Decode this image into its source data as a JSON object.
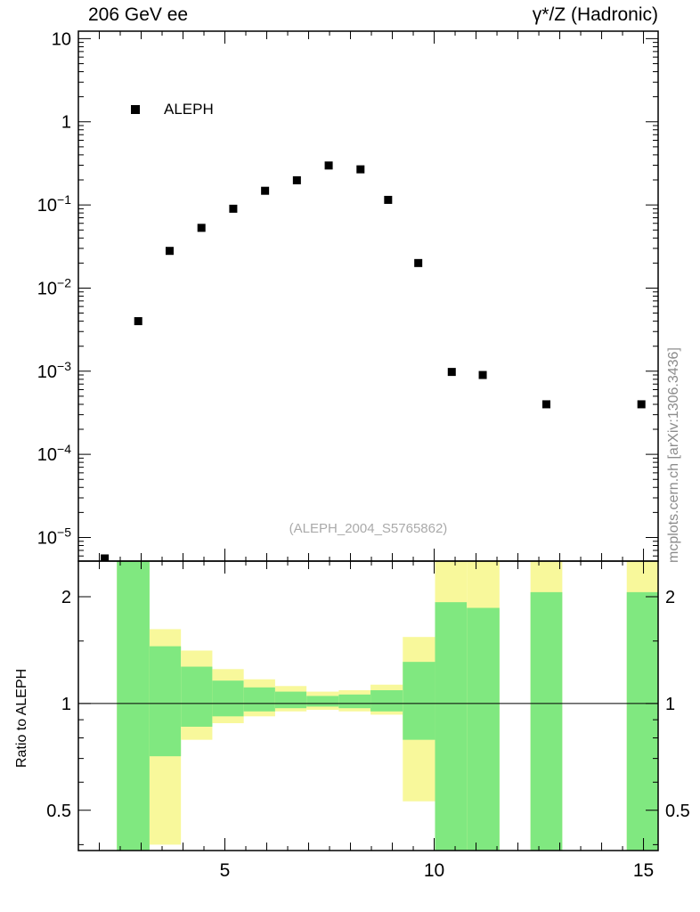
{
  "side_note": "mcplots.cern.ch [arXiv:1306.3436]",
  "chart_data": {
    "type": "scatter",
    "title": "206 GeV ee",
    "right_title": "γ*/Z (Hadronic)",
    "analysis": "(ALEPH_2004_S5765862)",
    "x_axis": {
      "range": [
        1.5,
        15.35
      ],
      "major_ticks": [
        5,
        10,
        15
      ],
      "minor_step": 0.5,
      "label": ""
    },
    "y_axis": {
      "scale": "log",
      "range": [
        5.2e-06,
        12.3
      ],
      "decade_exponents": [
        1,
        0,
        -1,
        -2,
        -3,
        -4,
        -5
      ]
    },
    "series": [
      {
        "name": "ALEPH",
        "marker": "black-filled-square",
        "points": [
          [
            2.13,
            5.6e-06
          ],
          [
            2.93,
            0.004
          ],
          [
            3.68,
            0.028
          ],
          [
            4.44,
            0.053
          ],
          [
            5.2,
            0.09
          ],
          [
            5.96,
            0.148
          ],
          [
            6.72,
            0.198
          ],
          [
            7.48,
            0.298
          ],
          [
            8.24,
            0.268
          ],
          [
            8.9,
            0.115
          ],
          [
            9.62,
            0.02
          ],
          [
            10.42,
            0.00098
          ],
          [
            11.16,
            0.0009
          ],
          [
            12.68,
            0.0004
          ],
          [
            14.95,
            0.0004
          ]
        ]
      }
    ],
    "ratio_panel": {
      "ylabel": "Ratio to ALEPH",
      "scale": "log",
      "range": [
        0.385,
        2.52
      ],
      "major_ticks": [
        0.5,
        1,
        2
      ],
      "minor_ticks": [
        0.4,
        0.6,
        0.7,
        0.8,
        0.9,
        1.5
      ],
      "reference_line": 1.0,
      "band_colors": {
        "outer": "#f8f89b",
        "inner": "#80e880"
      },
      "bands": [
        {
          "x": [
            2.42,
            3.2
          ],
          "outer": [
            0.385,
            2.52
          ],
          "inner": [
            0.385,
            2.52
          ]
        },
        {
          "x": [
            3.2,
            3.95
          ],
          "outer": [
            0.4,
            1.62
          ],
          "inner": [
            0.71,
            1.45
          ]
        },
        {
          "x": [
            3.95,
            4.7
          ],
          "outer": [
            0.79,
            1.41
          ],
          "inner": [
            0.86,
            1.27
          ]
        },
        {
          "x": [
            4.7,
            5.45
          ],
          "outer": [
            0.88,
            1.25
          ],
          "inner": [
            0.92,
            1.16
          ]
        },
        {
          "x": [
            5.45,
            6.2
          ],
          "outer": [
            0.92,
            1.17
          ],
          "inner": [
            0.95,
            1.11
          ]
        },
        {
          "x": [
            6.2,
            6.95
          ],
          "outer": [
            0.95,
            1.12
          ],
          "inner": [
            0.97,
            1.08
          ]
        },
        {
          "x": [
            6.95,
            7.72
          ],
          "outer": [
            0.96,
            1.08
          ],
          "inner": [
            0.98,
            1.05
          ]
        },
        {
          "x": [
            7.72,
            8.48
          ],
          "outer": [
            0.95,
            1.09
          ],
          "inner": [
            0.97,
            1.06
          ]
        },
        {
          "x": [
            8.48,
            9.25
          ],
          "outer": [
            0.93,
            1.13
          ],
          "inner": [
            0.95,
            1.09
          ]
        },
        {
          "x": [
            9.25,
            10.02
          ],
          "outer": [
            0.53,
            1.54
          ],
          "inner": [
            0.79,
            1.31
          ]
        },
        {
          "x": [
            10.02,
            10.78
          ],
          "outer": [
            0.385,
            2.52
          ],
          "inner": [
            0.385,
            1.93
          ]
        },
        {
          "x": [
            10.78,
            11.56
          ],
          "outer": [
            0.385,
            2.52
          ],
          "inner": [
            0.385,
            1.86
          ]
        },
        {
          "x": [
            12.3,
            13.06
          ],
          "outer": [
            0.385,
            2.52
          ],
          "inner": [
            0.385,
            2.06
          ]
        },
        {
          "x": [
            14.6,
            15.35
          ],
          "outer": [
            0.385,
            2.52
          ],
          "inner": [
            0.385,
            2.06
          ]
        }
      ]
    }
  }
}
